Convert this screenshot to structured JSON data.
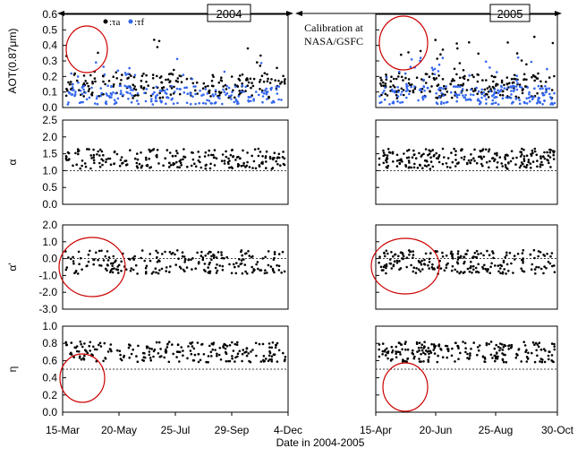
{
  "header": {
    "year_2004": "2004",
    "year_2005": "2005",
    "calibration_line1": "Calibration   at",
    "calibration_line2": "NASA/GSFC"
  },
  "legend": {
    "total_label": ":τa",
    "fine_label": ":τf"
  },
  "xaxis": {
    "title": "Date in 2004-2005",
    "ticks": [
      "15-Mar",
      "20-May",
      "25-Jul",
      "29-Sep",
      "4-Dec",
      "15-Apr",
      "20-Jun",
      "25-Aug",
      "30-Oct"
    ]
  },
  "colors": {
    "total": "#000000",
    "fine": "#3366ee",
    "circle": "#cc0000",
    "reference": "#000000"
  },
  "chart_data": [
    {
      "type": "scatter",
      "ylabel": "AOT(0.87μm)",
      "ylim": [
        0,
        0.6
      ],
      "yticks": [
        "0.0",
        "0.1",
        "0.2",
        "0.3",
        "0.4",
        "0.5",
        "0.6"
      ],
      "series": [
        {
          "name": "τa",
          "base": 0.14,
          "spread": 0.08,
          "spike": 0.32
        },
        {
          "name": "τf",
          "base": 0.08,
          "spread": 0.06,
          "spike": 0.25
        }
      ]
    },
    {
      "type": "scatter",
      "ylabel": "α",
      "ylim": [
        0,
        2.5
      ],
      "yticks": [
        "0.0",
        "0.5",
        "1.0",
        "1.5",
        "2.0",
        "2.5"
      ],
      "reference_line": 1.0,
      "series": [
        {
          "name": "α",
          "base": 1.35,
          "spread": 0.3,
          "spike": 0.0
        }
      ]
    },
    {
      "type": "scatter",
      "ylabel": "α'",
      "ylim": [
        -3,
        2
      ],
      "yticks": [
        "-3.0",
        "-2.0",
        "-1.0",
        "0.0",
        "1.0",
        "2.0"
      ],
      "reference_line": 0.0,
      "series": [
        {
          "name": "α'",
          "base": -0.2,
          "spread": 0.7,
          "spike": 0.0
        }
      ]
    },
    {
      "type": "scatter",
      "ylabel": "η",
      "ylim": [
        0,
        1
      ],
      "yticks": [
        "0.0",
        "0.2",
        "0.4",
        "0.6",
        "0.8",
        "1.0"
      ],
      "reference_line": 0.5,
      "series": [
        {
          "name": "η",
          "base": 0.7,
          "spread": 0.12,
          "spike": 0.0
        }
      ]
    }
  ]
}
